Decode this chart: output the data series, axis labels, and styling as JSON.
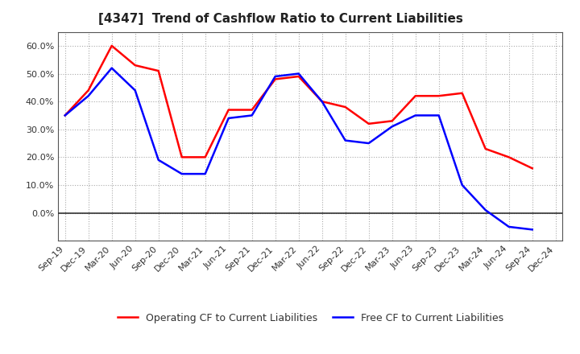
{
  "title": "[4347]  Trend of Cashflow Ratio to Current Liabilities",
  "x_labels": [
    "Sep-19",
    "Dec-19",
    "Mar-20",
    "Jun-20",
    "Sep-20",
    "Dec-20",
    "Mar-21",
    "Jun-21",
    "Sep-21",
    "Dec-21",
    "Mar-22",
    "Jun-22",
    "Sep-22",
    "Dec-22",
    "Mar-23",
    "Jun-23",
    "Sep-23",
    "Dec-23",
    "Mar-24",
    "Jun-24",
    "Sep-24",
    "Dec-24"
  ],
  "operating_cf": [
    0.35,
    0.44,
    0.6,
    0.53,
    0.51,
    0.2,
    0.2,
    0.37,
    0.37,
    0.48,
    0.49,
    0.4,
    0.38,
    0.32,
    0.33,
    0.42,
    0.42,
    0.43,
    0.23,
    0.2,
    0.16,
    null
  ],
  "free_cf": [
    0.35,
    0.42,
    0.52,
    0.44,
    0.19,
    0.14,
    0.14,
    0.34,
    0.35,
    0.49,
    0.5,
    0.4,
    0.26,
    0.25,
    0.31,
    0.35,
    0.35,
    0.1,
    0.01,
    -0.05,
    -0.06,
    null
  ],
  "ylim": [
    -0.1,
    0.65
  ],
  "yticks": [
    0.0,
    0.1,
    0.2,
    0.3,
    0.4,
    0.5,
    0.6
  ],
  "operating_color": "#ff0000",
  "free_color": "#0000ff",
  "background_color": "#ffffff",
  "grid_color": "#aaaaaa",
  "legend_op": "Operating CF to Current Liabilities",
  "legend_free": "Free CF to Current Liabilities",
  "title_fontsize": 11,
  "tick_fontsize": 8,
  "legend_fontsize": 9
}
